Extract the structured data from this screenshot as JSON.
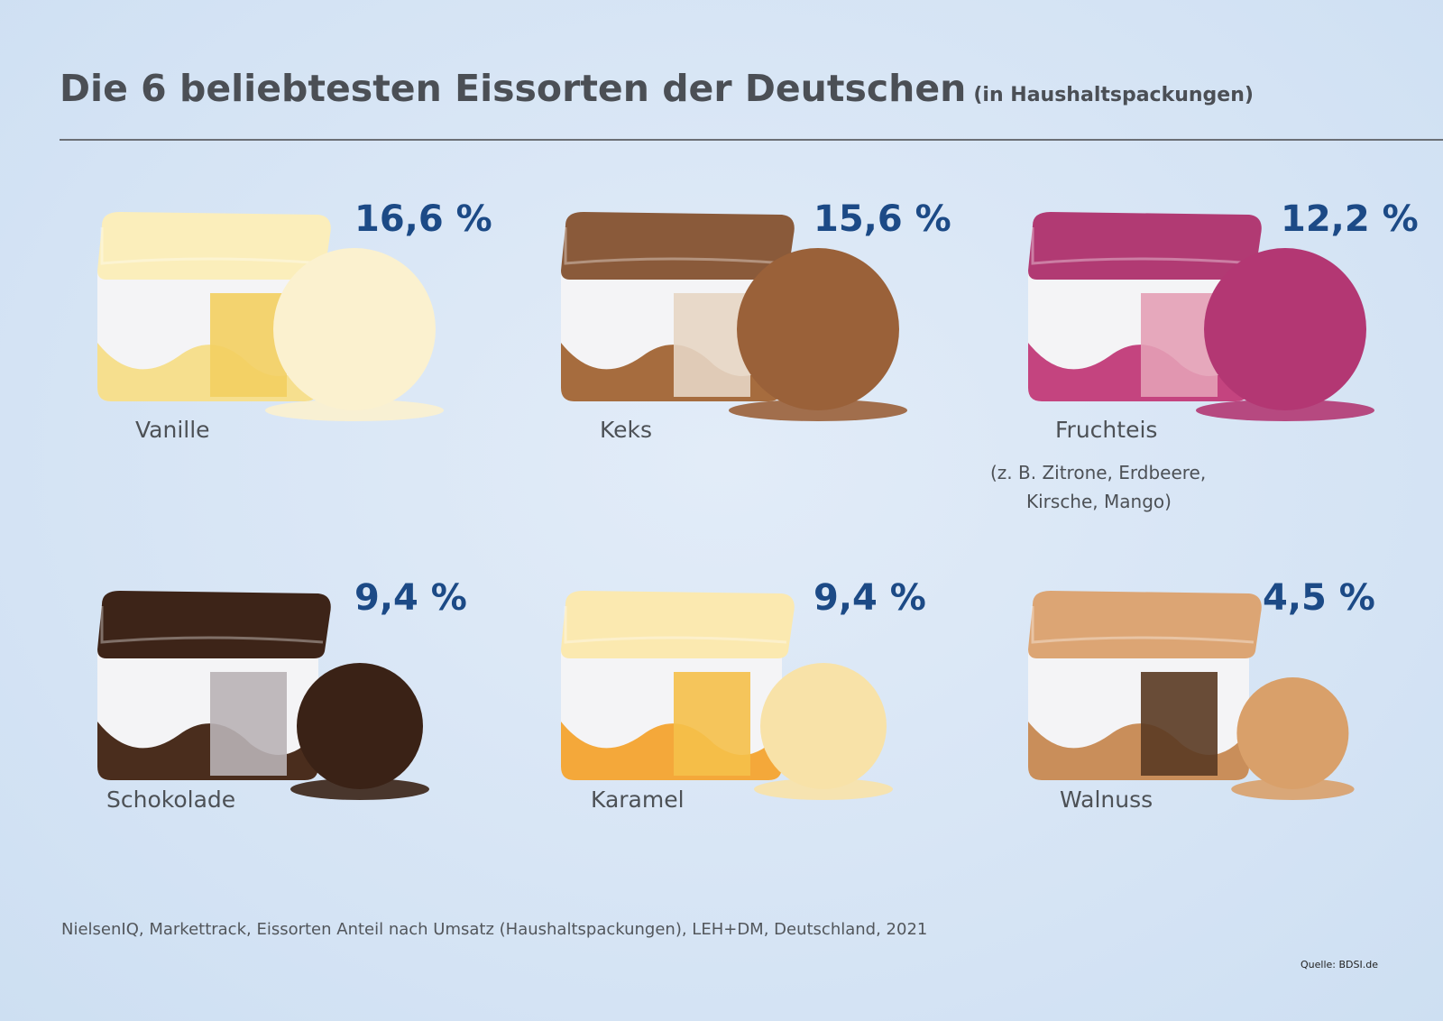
{
  "title": "Die 6 beliebtesten Eissorten der Deutschen",
  "subtitle": "(in Haushaltspackungen)",
  "chart_data": {
    "type": "table",
    "title": "Die 6 beliebtesten Eissorten der Deutschen",
    "subtitle": "(in Haushaltspackungen)",
    "categories": [
      "Vanille",
      "Keks",
      "Fruchteis",
      "Schokolade",
      "Karamel",
      "Walnuss"
    ],
    "values": [
      16.6,
      15.6,
      12.2,
      9.4,
      9.4,
      4.5
    ],
    "unit": "%",
    "items": [
      {
        "label": "Vanille",
        "value_label": "16,6 %",
        "note": "",
        "lid": "#fbeebb",
        "body": "#f6df8e",
        "scoop": "#fbf1cf",
        "tag": "#f3cf61"
      },
      {
        "label": "Keks",
        "value_label": "15,6 %",
        "note": "",
        "lid": "#8a5a3a",
        "body": "#a66c3e",
        "scoop": "#9a6139",
        "tag": "#e7d6c4"
      },
      {
        "label": "Fruchteis",
        "value_label": "12,2 %",
        "note_lines": [
          "(z. B. Zitrone, Erdbeere,",
          "Kirsche, Mango)"
        ],
        "lid": "#b13a73",
        "body": "#c4447f",
        "scoop": "#b33773",
        "tag": "#e4a0b6"
      },
      {
        "label": "Schokolade",
        "value_label": "9,4 %",
        "note": "",
        "lid": "#3d2418",
        "body": "#4a2d1d",
        "scoop": "#3a2216",
        "tag": "#b9b2b6"
      },
      {
        "label": "Karamel",
        "value_label": "9,4 %",
        "note": "",
        "lid": "#fbe9b0",
        "body": "#f4a83a",
        "scoop": "#f8e2a8",
        "tag": "#f5c04a"
      },
      {
        "label": "Walnuss",
        "value_label": "4,5 %",
        "note": "",
        "lid": "#dca574",
        "body": "#c98e5a",
        "scoop": "#d9a06a",
        "tag": "#5a3a22"
      }
    ]
  },
  "source": "NielsenIQ, Markettrack, Eissorten Anteil nach Umsatz  (Haushaltspackungen), LEH+DM, Deutschland, 2021",
  "credit": "Quelle: BDSI.de",
  "colors": {
    "background": "#d6e4f4",
    "percent": "#1c4a86",
    "text": "#4b4f55"
  }
}
